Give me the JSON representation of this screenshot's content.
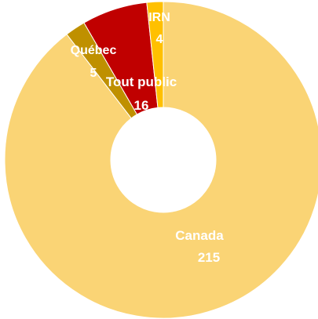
{
  "chart_data": {
    "type": "pie",
    "variant": "donut",
    "title": "",
    "slices": [
      {
        "name": "Canada",
        "value": 215,
        "color": "#FAD475"
      },
      {
        "name": "Québec",
        "value": 5,
        "color": "#BF9000"
      },
      {
        "name": "Tout public",
        "value": 16,
        "color": "#C00000"
      },
      {
        "name": "IRN",
        "value": 4,
        "color": "#FFC000"
      }
    ],
    "legend": "none",
    "data_labels": "category name and value"
  }
}
